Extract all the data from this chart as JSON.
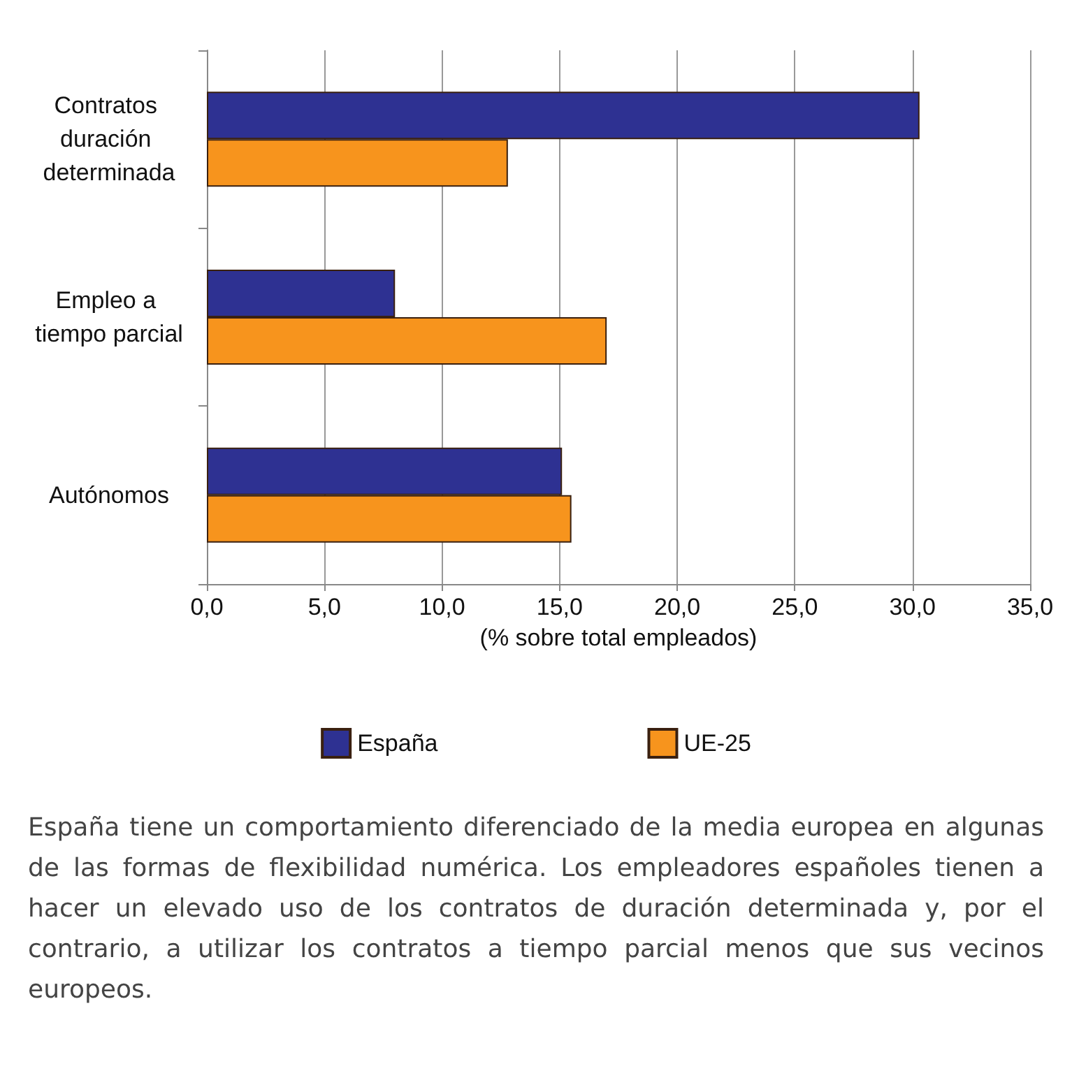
{
  "chart_data": {
    "type": "bar",
    "orientation": "horizontal",
    "categories": [
      "Contratos duración determinada",
      "Empleo a tiempo parcial",
      "Autónomos"
    ],
    "series": [
      {
        "name": "España",
        "color": "#2e3192",
        "values": [
          30.3,
          8.0,
          15.1
        ]
      },
      {
        "name": "UE-25",
        "color": "#f7941d",
        "values": [
          12.8,
          17.0,
          15.5
        ]
      }
    ],
    "xlabel": "(% sobre total empleados)",
    "xlim": [
      0,
      35
    ],
    "xticks": [
      {
        "value": 0,
        "label": "0,0"
      },
      {
        "value": 5,
        "label": "5,0"
      },
      {
        "value": 10,
        "label": "10,0"
      },
      {
        "value": 15,
        "label": "15,0"
      },
      {
        "value": 20,
        "label": "20,0"
      },
      {
        "value": 25,
        "label": "25,0"
      },
      {
        "value": 30,
        "label": "30,0"
      },
      {
        "value": 35,
        "label": "35,0"
      }
    ],
    "grid": "x",
    "legend": "bottom",
    "annotations": [
      "España tiene un comportamiento diferenciado de la media europea en algunas de las formas de flexibilidad numérica. Los empleadores españoles tienen a hacer un elevado uso de los contratos de duración determinada y, por el contrario, a utilizar los contratos a tiempo parcial menos que sus vecinos europeos."
    ]
  }
}
